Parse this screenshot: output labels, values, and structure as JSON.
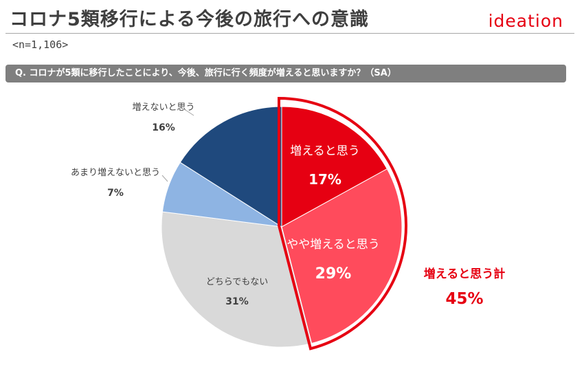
{
  "header": {
    "title": "コロナ5類移行による今後の旅行への意識",
    "logo_text": "ideation",
    "sample_size": "<n=1,106>"
  },
  "question": {
    "text": "Q. コロナが5類に移行したことにより、今後、旅行に行く頻度が増えると思いますか？（SA）"
  },
  "summary": {
    "label": "増えると思う計",
    "value": "45%"
  },
  "colors": {
    "accent": "#e60012",
    "bar": "#7f7f7f"
  },
  "chart_data": {
    "type": "pie",
    "title": "コロナが5類に移行したことにより、今後、旅行に行く頻度が増えると思いますか？",
    "start_angle_deg": 0,
    "direction": "clockwise",
    "slices": [
      {
        "label": "増えると思う",
        "value": 17,
        "value_label": "17%",
        "color": "#e60012",
        "highlight": true
      },
      {
        "label": "やや増えると思う",
        "value": 29,
        "value_label": "29%",
        "color": "#ff4b5c",
        "highlight": true
      },
      {
        "label": "どちらでもない",
        "value": 31,
        "value_label": "31%",
        "color": "#d9d9d9",
        "highlight": false
      },
      {
        "label": "あまり増えないと思う",
        "value": 7,
        "value_label": "7%",
        "color": "#8eb4e3",
        "highlight": false
      },
      {
        "label": "増えないと思う",
        "value": 16,
        "value_label": "16%",
        "color": "#1f497d",
        "highlight": false
      }
    ]
  }
}
